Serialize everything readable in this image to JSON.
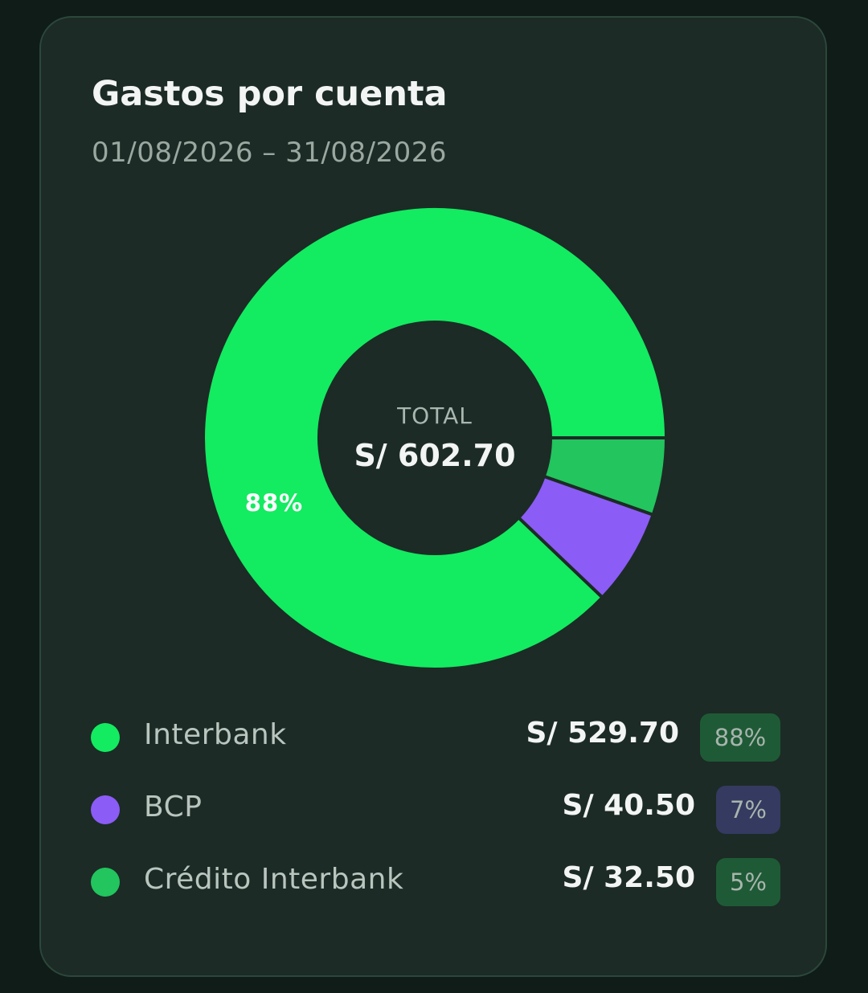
{
  "card": {
    "title": "Gastos por cuenta",
    "date_range": "01/08/2026 – 31/08/2026"
  },
  "chart_data": {
    "type": "pie",
    "style": "donut",
    "center_label": "TOTAL",
    "center_value": "S/ 602.70",
    "total": 602.7,
    "slices": [
      {
        "name": "Interbank",
        "value": 529.7,
        "value_label": "S/ 529.70",
        "percent": 88,
        "percent_label": "88%",
        "color": "#13eb61",
        "badge_color": "#1f5a36"
      },
      {
        "name": "BCP",
        "value": 40.5,
        "value_label": "S/ 40.50",
        "percent": 7,
        "percent_label": "7%",
        "color": "#8b5cf6",
        "badge_color": "#343a60"
      },
      {
        "name": "Crédito Interbank",
        "value": 32.5,
        "value_label": "S/ 32.50",
        "percent": 5,
        "percent_label": "5%",
        "color": "#22c55e",
        "badge_color": "#1f5a36"
      }
    ],
    "slice_labels": [
      "88%"
    ]
  }
}
